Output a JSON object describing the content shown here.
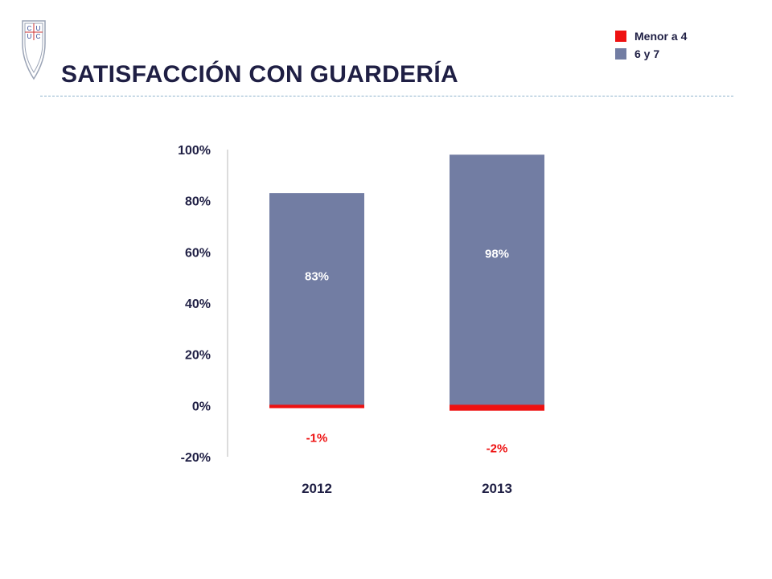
{
  "header": {
    "title": "SATISFACCIÓN CON GUARDERÍA"
  },
  "logo": {
    "icon": "university-shield-icon",
    "letters": [
      "C",
      "U",
      "U",
      "C"
    ]
  },
  "colors": {
    "positive": "#727da3",
    "negative": "#ee1111",
    "text": "#1f1f44",
    "axis": "#d0d0d0"
  },
  "chart_data": {
    "type": "bar",
    "stacked": true,
    "categories": [
      "2012",
      "2013"
    ],
    "series": [
      {
        "name": "Menor a 4",
        "values": [
          -1,
          -2
        ],
        "labels": [
          "-1%",
          "-2%"
        ],
        "color": "#ee1111"
      },
      {
        "name": "6 y 7",
        "values": [
          83,
          98
        ],
        "labels": [
          "83%",
          "98%"
        ],
        "color": "#727da3"
      }
    ],
    "ylim": [
      -20,
      100
    ],
    "yticks": [
      100,
      80,
      60,
      40,
      20,
      0,
      -20
    ],
    "ytick_labels": [
      "100%",
      "80%",
      "60%",
      "40%",
      "20%",
      "0%",
      "-20%"
    ],
    "grid": false,
    "legend": "top-right",
    "title": "",
    "xlabel": "",
    "ylabel": ""
  }
}
